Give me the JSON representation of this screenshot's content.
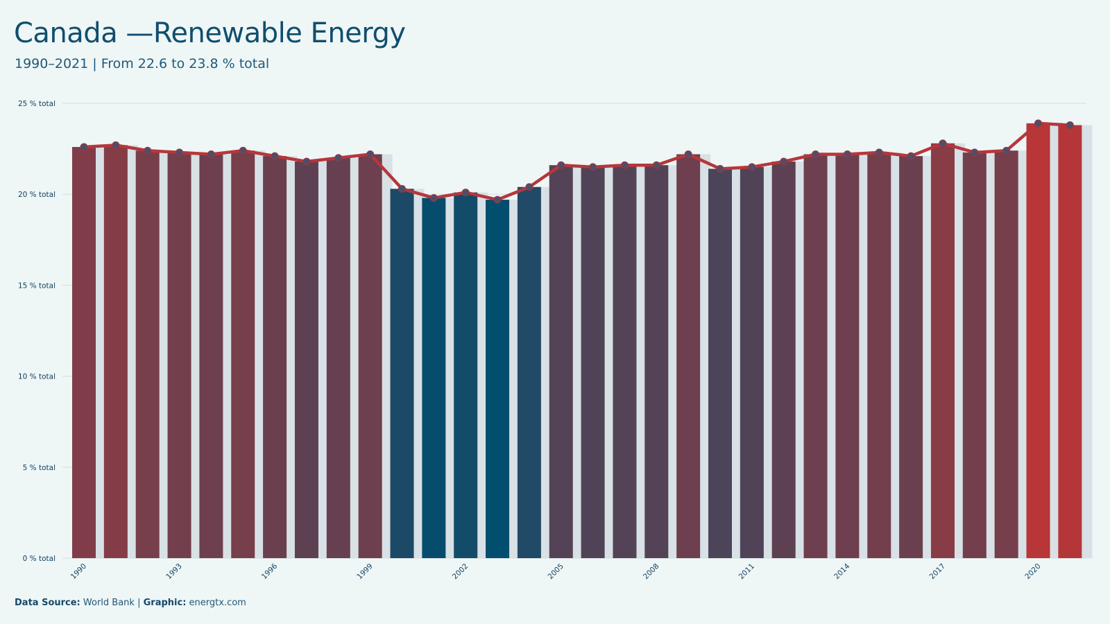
{
  "title": "Canada —Renewable Energy",
  "subtitle": "1990–2021 | From 22.6 to 23.8 % total",
  "footer": {
    "source_label": "Data Source:",
    "source_value": "World Bank",
    "separator": "|",
    "graphic_label": "Graphic:",
    "graphic_value": "energtx.com"
  },
  "colors": {
    "background": "#eff6f6",
    "line": "#b5373b",
    "high": "#b83538",
    "low": "#024e6e",
    "shadow_bar": "#d8e1e5",
    "grid": "#d9e1e3",
    "axis_text": "#0c3f5f"
  },
  "chart_data": {
    "type": "bar",
    "overlay": "line",
    "x": [
      1990,
      1991,
      1992,
      1993,
      1994,
      1995,
      1996,
      1997,
      1998,
      1999,
      2000,
      2001,
      2002,
      2003,
      2004,
      2005,
      2006,
      2007,
      2008,
      2009,
      2010,
      2011,
      2012,
      2013,
      2014,
      2015,
      2016,
      2017,
      2018,
      2019,
      2020,
      2021
    ],
    "values": [
      22.6,
      22.7,
      22.4,
      22.3,
      22.2,
      22.4,
      22.1,
      21.8,
      22.0,
      22.2,
      20.3,
      19.8,
      20.1,
      19.7,
      20.4,
      21.6,
      21.5,
      21.6,
      21.6,
      22.2,
      21.4,
      21.5,
      21.8,
      22.2,
      22.2,
      22.3,
      22.1,
      22.8,
      22.3,
      22.4,
      23.9,
      23.8
    ],
    "x_tick_labels": [
      "1990",
      "1993",
      "1996",
      "1999",
      "2002",
      "2005",
      "2008",
      "2011",
      "2014",
      "2017",
      "2020"
    ],
    "y_ticks": [
      0,
      5,
      10,
      15,
      20,
      25
    ],
    "y_tick_labels": [
      "0 % total",
      "5 % total",
      "10 % total",
      "15 % total",
      "20 % total",
      "25 % total"
    ],
    "ylim": [
      0,
      25
    ],
    "grid": true,
    "legend": "none"
  }
}
